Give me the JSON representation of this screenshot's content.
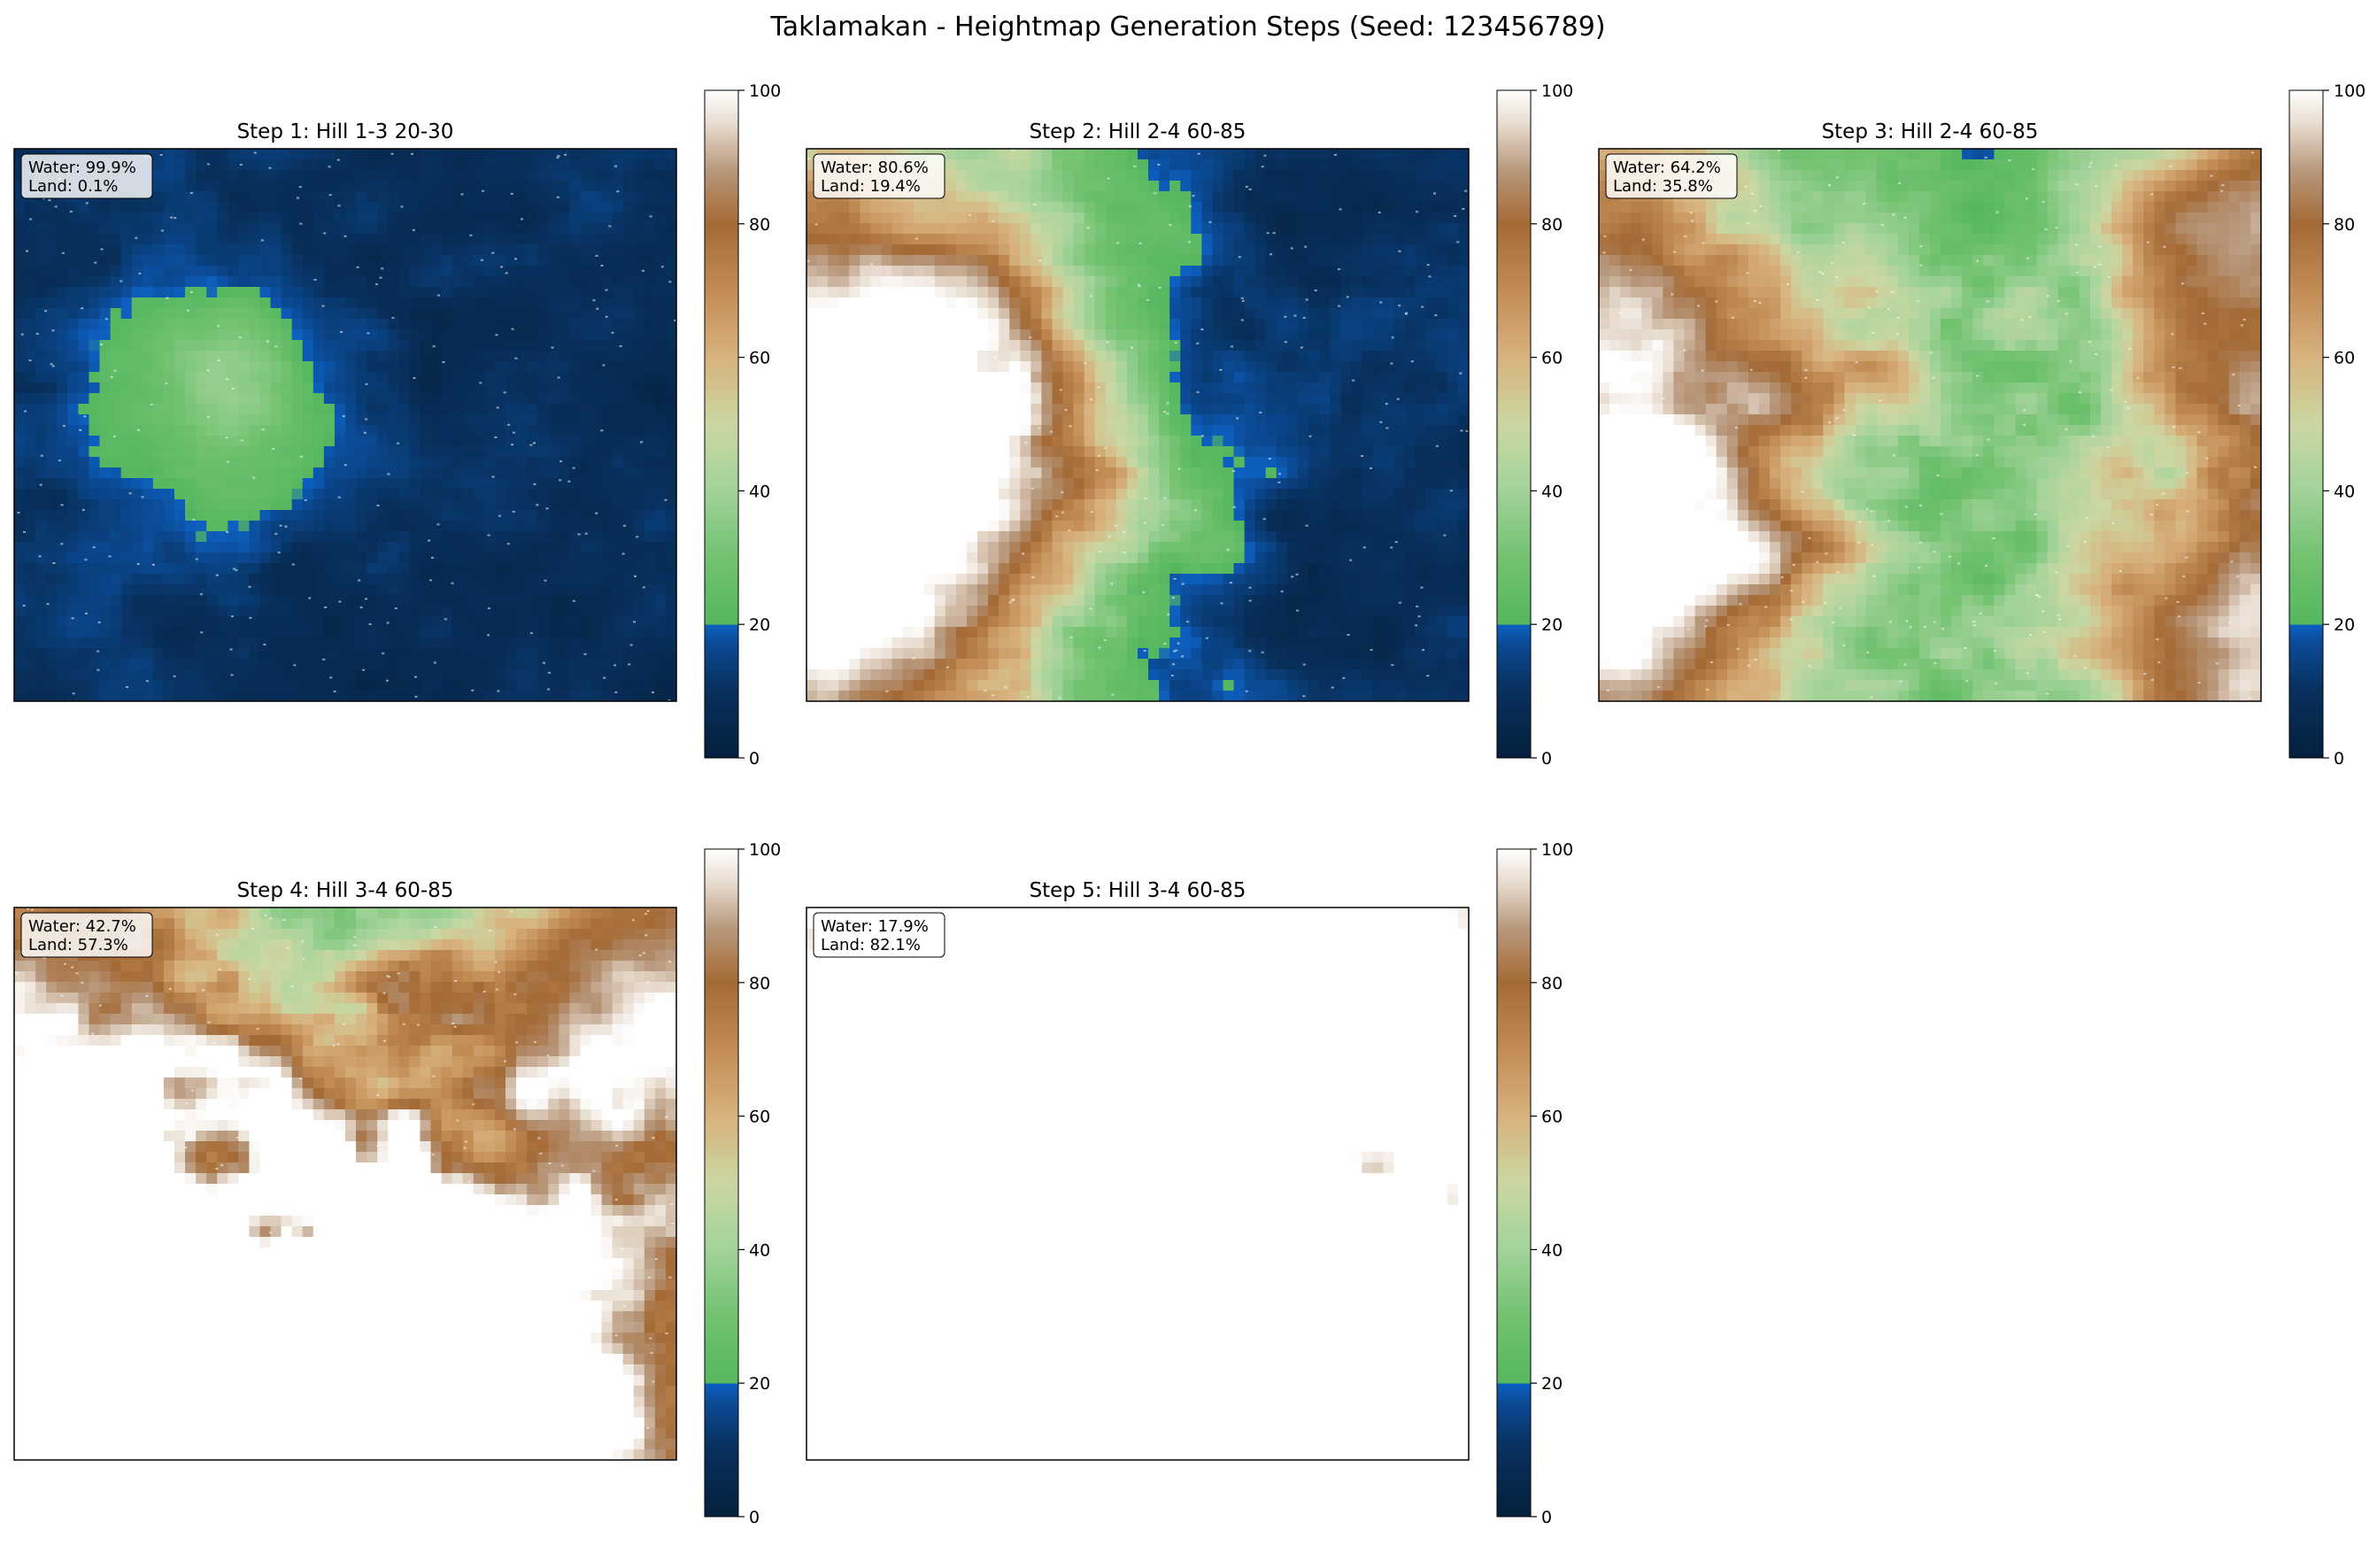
{
  "figure": {
    "title": "Taklamakan - Heightmap Generation Steps (Seed: 123456789)"
  },
  "colormap": {
    "name": "terrain-like",
    "stops": [
      {
        "v": 0,
        "color": "#04203d"
      },
      {
        "v": 10,
        "color": "#08305c"
      },
      {
        "v": 17,
        "color": "#0b4a94"
      },
      {
        "v": 19.9,
        "color": "#0d60c0"
      },
      {
        "v": 20,
        "color": "#55b760"
      },
      {
        "v": 30,
        "color": "#72c270"
      },
      {
        "v": 40,
        "color": "#a2d39a"
      },
      {
        "v": 50,
        "color": "#cbd7a2"
      },
      {
        "v": 60,
        "color": "#d8b27e"
      },
      {
        "v": 70,
        "color": "#c28c55"
      },
      {
        "v": 80,
        "color": "#a46a36"
      },
      {
        "v": 88,
        "color": "#b8987c"
      },
      {
        "v": 95,
        "color": "#e8dccf"
      },
      {
        "v": 100,
        "color": "#ffffff"
      }
    ]
  },
  "chart_data": [
    {
      "type": "heatmap",
      "title": "Step 1: Hill 1-3 20-30",
      "annotation": {
        "water": "Water: 99.9%",
        "land": "Land: 0.1%"
      },
      "water_percent": 99.9,
      "land_percent": 0.1,
      "colorbar": {
        "range": [
          0,
          100
        ],
        "ticks": [
          "0",
          "20",
          "40",
          "60",
          "80",
          "100"
        ]
      },
      "hills": [
        {
          "x": 0.32,
          "y": 0.44,
          "h": 26,
          "r": 0.15
        }
      ]
    },
    {
      "type": "heatmap",
      "title": "Step 2: Hill 2-4 60-85",
      "annotation": {
        "water": "Water: 80.6%",
        "land": "Land: 19.4%"
      },
      "water_percent": 80.6,
      "land_percent": 19.4,
      "colorbar": {
        "range": [
          0,
          100
        ],
        "ticks": [
          "0",
          "20",
          "40",
          "60",
          "80",
          "100"
        ]
      },
      "hills": [
        {
          "x": 0.0,
          "y": 0.33,
          "h": 78,
          "r": 0.33
        },
        {
          "x": 0.0,
          "y": 0.88,
          "h": 80,
          "r": 0.32
        },
        {
          "x": 0.27,
          "y": 0.55,
          "h": 30,
          "r": 0.18
        }
      ]
    },
    {
      "type": "heatmap",
      "title": "Step 3: Hill 2-4 60-85",
      "annotation": {
        "water": "Water: 64.2%",
        "land": "Land: 35.8%"
      },
      "water_percent": 64.2,
      "land_percent": 35.8,
      "colorbar": {
        "range": [
          0,
          100
        ],
        "ticks": [
          "0",
          "20",
          "40",
          "60",
          "80",
          "100"
        ]
      },
      "hills": [
        {
          "x": 0.0,
          "y": 0.33,
          "h": 78,
          "r": 0.33
        },
        {
          "x": 0.0,
          "y": 0.88,
          "h": 80,
          "r": 0.32
        },
        {
          "x": 1.0,
          "y": 0.18,
          "h": 80,
          "r": 0.27
        },
        {
          "x": 1.0,
          "y": 0.92,
          "h": 80,
          "r": 0.27
        }
      ]
    },
    {
      "type": "heatmap",
      "title": "Step 4: Hill 3-4 60-85",
      "annotation": {
        "water": "Water: 42.7%",
        "land": "Land: 57.3%"
      },
      "water_percent": 42.7,
      "land_percent": 57.3,
      "colorbar": {
        "range": [
          0,
          100
        ],
        "ticks": [
          "0",
          "20",
          "40",
          "60",
          "80",
          "100"
        ]
      },
      "hills": [
        {
          "x": 0.0,
          "y": 0.28,
          "h": 80,
          "r": 0.33
        },
        {
          "x": 1.0,
          "y": 0.2,
          "h": 80,
          "r": 0.33
        },
        {
          "x": 0.3,
          "y": 1.05,
          "h": 85,
          "r": 0.45
        },
        {
          "x": 0.72,
          "y": 1.05,
          "h": 80,
          "r": 0.4
        },
        {
          "x": 0.0,
          "y": 1.0,
          "h": 85,
          "r": 0.35
        }
      ]
    },
    {
      "type": "heatmap",
      "title": "Step 5: Hill 3-4 60-85",
      "annotation": {
        "water": "Water: 17.9%",
        "land": "Land: 82.1%"
      },
      "water_percent": 17.9,
      "land_percent": 82.1,
      "colorbar": {
        "range": [
          0,
          100
        ],
        "ticks": [
          "0",
          "20",
          "40",
          "60",
          "80",
          "100"
        ]
      },
      "hills": [
        {
          "x": 0.0,
          "y": 0.3,
          "h": 80,
          "r": 0.4
        },
        {
          "x": 1.0,
          "y": 0.15,
          "h": 82,
          "r": 0.38
        },
        {
          "x": 0.45,
          "y": -0.05,
          "h": 80,
          "r": 0.42
        },
        {
          "x": 0.3,
          "y": 1.05,
          "h": 85,
          "r": 0.45
        },
        {
          "x": 0.72,
          "y": 1.05,
          "h": 82,
          "r": 0.42
        },
        {
          "x": 0.0,
          "y": 1.0,
          "h": 85,
          "r": 0.35
        },
        {
          "x": 1.0,
          "y": 1.0,
          "h": 80,
          "r": 0.3
        }
      ]
    }
  ]
}
